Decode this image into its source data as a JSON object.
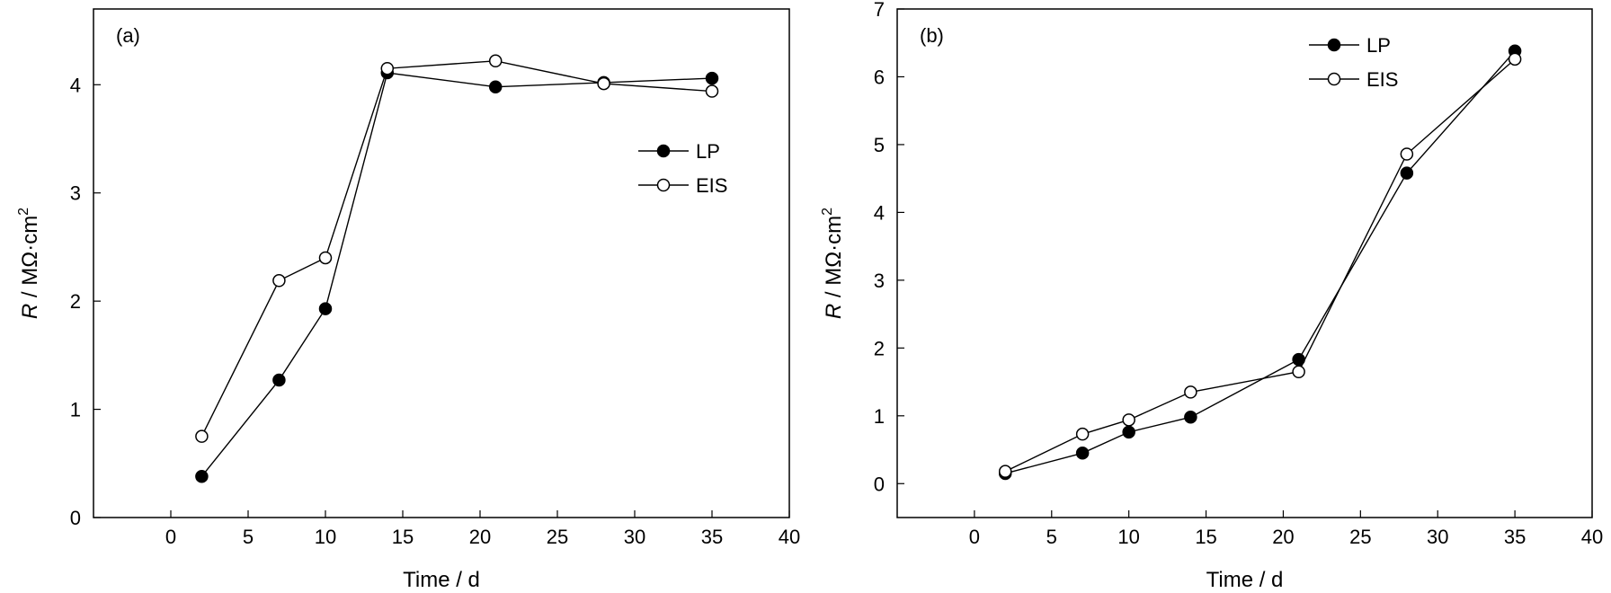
{
  "chart_data": [
    {
      "type": "line",
      "panel_label": "(a)",
      "xlabel": "Time / d",
      "ylabel": {
        "italic": "R",
        "rest": " / MΩ·cm",
        "sup": "2"
      },
      "xlim": [
        -5,
        40
      ],
      "ylim": [
        0,
        4.7
      ],
      "xticks": [
        0,
        5,
        10,
        15,
        20,
        25,
        30,
        35,
        40
      ],
      "yticks": [
        0,
        1,
        2,
        3,
        4
      ],
      "legend_position": "right",
      "series": [
        {
          "name": "LP",
          "marker": "filled-circle",
          "x": [
            2,
            7,
            10,
            14,
            21,
            28,
            35
          ],
          "y": [
            0.38,
            1.27,
            1.93,
            4.11,
            3.98,
            4.02,
            4.06
          ]
        },
        {
          "name": "EIS",
          "marker": "open-circle",
          "x": [
            2,
            7,
            10,
            14,
            21,
            28,
            35
          ],
          "y": [
            0.75,
            2.19,
            2.4,
            4.15,
            4.22,
            4.01,
            3.94
          ]
        }
      ]
    },
    {
      "type": "line",
      "panel_label": "(b)",
      "xlabel": "Time / d",
      "ylabel": {
        "italic": "R",
        "rest": " / MΩ·cm",
        "sup": "2"
      },
      "xlim": [
        -5,
        40
      ],
      "ylim": [
        -0.5,
        7
      ],
      "xticks": [
        0,
        5,
        10,
        15,
        20,
        25,
        30,
        35,
        40
      ],
      "yticks": [
        0,
        1,
        2,
        3,
        4,
        5,
        6,
        7
      ],
      "legend_position": "top-right",
      "series": [
        {
          "name": "LP",
          "marker": "filled-circle",
          "x": [
            2,
            7,
            10,
            14,
            21,
            28,
            35
          ],
          "y": [
            0.15,
            0.45,
            0.76,
            0.98,
            1.83,
            4.58,
            6.38
          ]
        },
        {
          "name": "EIS",
          "marker": "open-circle",
          "x": [
            2,
            7,
            10,
            14,
            21,
            28,
            35
          ],
          "y": [
            0.18,
            0.73,
            0.94,
            1.35,
            1.65,
            4.86,
            6.26
          ]
        }
      ]
    }
  ]
}
